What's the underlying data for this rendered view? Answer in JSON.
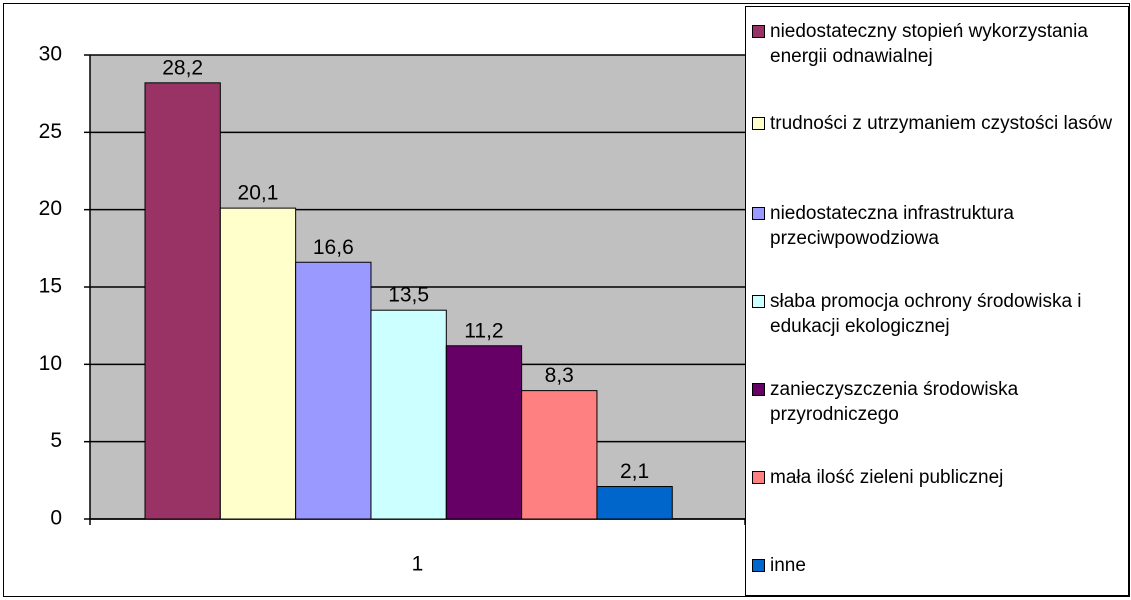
{
  "chart_data": {
    "type": "bar",
    "categories": [
      "1"
    ],
    "series": [
      {
        "name": "niedostateczny stopień wykorzystania energii odnawialnej",
        "color": "#993366",
        "values": [
          28.2
        ],
        "value_labels": [
          "28,2"
        ]
      },
      {
        "name": "trudności z utrzymaniem czystości lasów",
        "color": "#ffffcc",
        "values": [
          20.1
        ],
        "value_labels": [
          "20,1"
        ]
      },
      {
        "name": "niedostateczna infrastruktura przeciwpowodziowa",
        "color": "#9999ff",
        "values": [
          16.6
        ],
        "value_labels": [
          "16,6"
        ]
      },
      {
        "name": "słaba promocja ochrony środowiska i edukacji ekologicznej",
        "color": "#ccffff",
        "values": [
          13.5
        ],
        "value_labels": [
          "13,5"
        ]
      },
      {
        "name": "zanieczyszczenia środowiska przyrodniczego",
        "color": "#660066",
        "values": [
          11.2
        ],
        "value_labels": [
          "11,2"
        ]
      },
      {
        "name": "mała ilość zieleni publicznej",
        "color": "#ff8080",
        "values": [
          8.3
        ],
        "value_labels": [
          "8,3"
        ]
      },
      {
        "name": "inne",
        "color": "#0066cc",
        "values": [
          2.1
        ],
        "value_labels": [
          "2,1"
        ]
      }
    ],
    "ylim": [
      0,
      30
    ],
    "yticks": [
      0,
      5,
      10,
      15,
      20,
      25,
      30
    ],
    "grid": true,
    "legend": "right"
  }
}
